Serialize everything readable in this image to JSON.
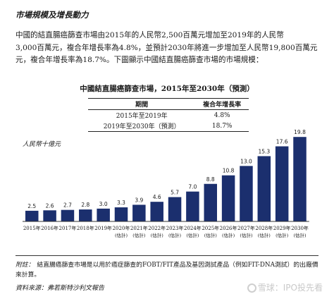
{
  "heading": "市場規模及增長動力",
  "paragraph_lines": [
    "中國的結直腸癌篩查市場由2015年的人民幣2,500百萬元增加至2019年的人民幣",
    "3,000百萬元，複合年增長率為4.8%，並預計2030年將進一步增加至人民幣19,800百萬元",
    "元，複合年增長率為18.7%。下圖顯示中國結直腸癌篩查市場的市場規模："
  ],
  "cagr_table": {
    "headers": [
      "期間",
      "複合年增長率"
    ],
    "rows": [
      [
        "2015年至2019年",
        "4.8%"
      ],
      [
        "2019年至2030年（預測）",
        "18.7%"
      ]
    ]
  },
  "note": {
    "label": "附註：",
    "text": "結直腸癌篩查市場是以用於癌症篩查的FOBT/FIT產品及基因測試產品（例如FIT-DNA測試）的出廠價來計算。"
  },
  "source": "資料來源：弗若斯特沙利文報告",
  "watermark": "雪球：IPO投先看",
  "colors": {
    "bar": "#1b2f6e",
    "text": "#1a1a1a"
  },
  "chart_data": {
    "type": "bar",
    "title": "中國結直腸癌篩查市場，2015年至2030年（預測）",
    "ylabel": "人民幣十億元",
    "xlabel": "",
    "categories": [
      "2015年",
      "2016年",
      "2017年",
      "2018年",
      "2019年",
      "2020年(估計)",
      "2021年(估計)",
      "2022年(估計)",
      "2023年(估計)",
      "2024年(估計)",
      "2025年(估計)",
      "2026年(估計)",
      "2027年(估計)",
      "2028年(估計)",
      "2029年(估計)",
      "2030年(估計)"
    ],
    "values": [
      2.5,
      2.6,
      2.7,
      2.8,
      3.0,
      3.3,
      3.9,
      4.6,
      5.7,
      7.0,
      8.8,
      10.8,
      13.0,
      15.3,
      17.6,
      19.8
    ],
    "value_labels": [
      "2.5",
      "2.6",
      "2.7",
      "2.8",
      "3.0",
      "3.3",
      "3.9",
      "4.6",
      "5.7",
      "7.0",
      "8.8",
      "10.8",
      "13.0",
      "15.3",
      "17.6",
      "19.8"
    ],
    "ylim": [
      0,
      20
    ],
    "grid": false,
    "legend": "none"
  }
}
